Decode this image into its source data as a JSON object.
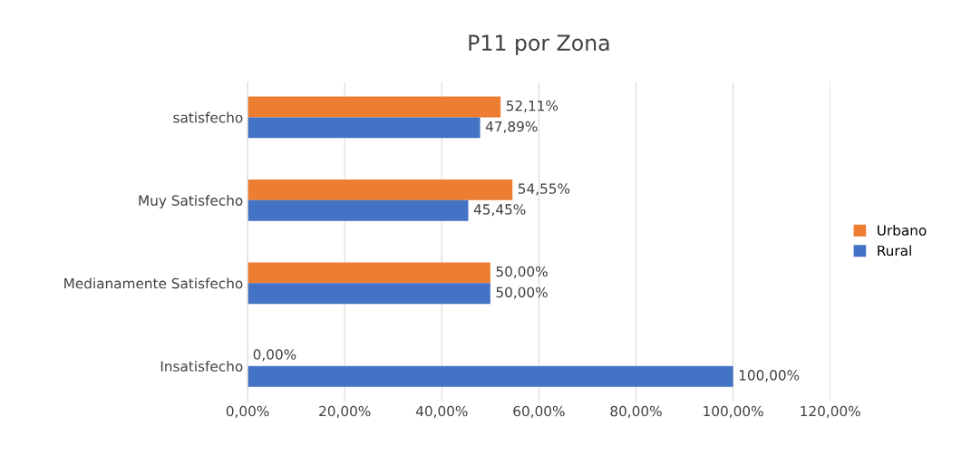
{
  "chart_data": {
    "type": "bar",
    "orientation": "horizontal",
    "title": "P11 por Zona",
    "categories": [
      "satisfecho",
      "Muy Satisfecho",
      "Medianamente Satisfecho",
      "Insatisfecho"
    ],
    "series": [
      {
        "name": "Urbano",
        "color": "#ed7d31",
        "values": [
          52.11,
          54.55,
          50.0,
          0.0
        ],
        "value_labels": [
          "52,11%",
          "54,55%",
          "50,00%",
          "0,00%"
        ]
      },
      {
        "name": "Rural",
        "color": "#4472c4",
        "values": [
          47.89,
          45.45,
          50.0,
          100.0
        ],
        "value_labels": [
          "47,89%",
          "45,45%",
          "50,00%",
          "100,00%"
        ]
      }
    ],
    "xlim": [
      0,
      120
    ],
    "xticks": [
      {
        "value": 0,
        "label": "0,00%"
      },
      {
        "value": 20,
        "label": "20,00%"
      },
      {
        "value": 40,
        "label": "40,00%"
      },
      {
        "value": 60,
        "label": "60,00%"
      },
      {
        "value": 80,
        "label": "80,00%"
      },
      {
        "value": 100,
        "label": "100,00%"
      },
      {
        "value": 120,
        "label": "120,00%"
      }
    ],
    "grid": "x",
    "legend": "right"
  }
}
